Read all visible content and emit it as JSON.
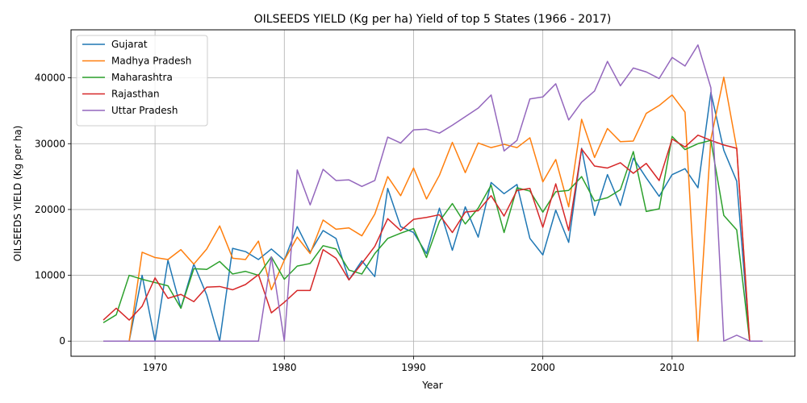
{
  "chart_data": {
    "type": "line",
    "title": "OILSEEDS YIELD (Kg per ha) Yield of top 5 States (1966 - 2017)",
    "xlabel": "Year",
    "ylabel": "OILSEEDS YIELD (Kg per ha)",
    "xlim": [
      1963.5,
      2019.5
    ],
    "ylim": [
      -2300,
      47300
    ],
    "xticks": [
      1970,
      1980,
      1990,
      2000,
      2010
    ],
    "yticks": [
      0,
      10000,
      20000,
      30000,
      40000
    ],
    "grid": true,
    "legend_position": "top-left",
    "x": [
      1966,
      1967,
      1968,
      1969,
      1970,
      1971,
      1972,
      1973,
      1974,
      1975,
      1976,
      1977,
      1978,
      1979,
      1980,
      1981,
      1982,
      1983,
      1984,
      1985,
      1986,
      1987,
      1988,
      1989,
      1990,
      1991,
      1992,
      1993,
      1994,
      1995,
      1996,
      1997,
      1998,
      1999,
      2000,
      2001,
      2002,
      2003,
      2004,
      2005,
      2006,
      2007,
      2008,
      2009,
      2010,
      2011,
      2012,
      2013,
      2014,
      2015,
      2016,
      2017
    ],
    "series": [
      {
        "name": "Gujarat",
        "color": "#1f77b4",
        "values": [
          0,
          0,
          0,
          10000,
          0,
          12300,
          5000,
          11700,
          7000,
          0,
          14100,
          13600,
          12400,
          14000,
          12300,
          17400,
          13500,
          16800,
          15600,
          9300,
          12200,
          9800,
          23200,
          17400,
          16500,
          13300,
          20200,
          13800,
          20400,
          15800,
          24100,
          22400,
          23800,
          15600,
          13100,
          19900,
          15000,
          29300,
          19100,
          25300,
          20600,
          27800,
          24800,
          22000,
          25300,
          26200,
          23300,
          37800,
          29000,
          24300,
          0,
          0
        ]
      },
      {
        "name": "Madhya Pradesh",
        "color": "#ff7f0e",
        "values": [
          0,
          0,
          0,
          13500,
          12700,
          12400,
          13900,
          11700,
          14000,
          17500,
          12600,
          12400,
          15200,
          7800,
          12300,
          15800,
          13300,
          18400,
          17000,
          17200,
          16000,
          19300,
          25000,
          22100,
          26300,
          21600,
          25200,
          30200,
          25600,
          30100,
          29400,
          29900,
          29400,
          30900,
          24200,
          27600,
          20400,
          33700,
          27900,
          32300,
          30300,
          30400,
          34600,
          35800,
          37400,
          34800,
          0,
          30700,
          40100,
          29300,
          0,
          0
        ]
      },
      {
        "name": "Maharashtra",
        "color": "#2ca02c",
        "values": [
          2800,
          4000,
          10000,
          9400,
          8900,
          8400,
          5000,
          11000,
          10900,
          12100,
          10200,
          10600,
          10000,
          12800,
          9400,
          11400,
          11800,
          14500,
          14000,
          10800,
          10200,
          13300,
          15600,
          16400,
          17100,
          12700,
          18200,
          20900,
          17800,
          20200,
          23700,
          16500,
          23300,
          22800,
          19600,
          22700,
          22900,
          25000,
          21300,
          21800,
          23000,
          28800,
          19700,
          20100,
          31100,
          29100,
          30000,
          30500,
          19100,
          16900,
          0,
          0
        ]
      },
      {
        "name": "Rajasthan",
        "color": "#d62728",
        "values": [
          3200,
          5000,
          3200,
          5300,
          9600,
          6500,
          7100,
          6000,
          8200,
          8300,
          7800,
          8600,
          10100,
          4300,
          5900,
          7700,
          7700,
          13900,
          12600,
          9300,
          11800,
          14400,
          18600,
          16800,
          18500,
          18800,
          19200,
          16500,
          19600,
          19800,
          22100,
          19000,
          22900,
          23200,
          17300,
          23900,
          16800,
          29200,
          26600,
          26300,
          27100,
          25500,
          27000,
          24400,
          30700,
          29500,
          31300,
          30500,
          29800,
          29300,
          0,
          0
        ]
      },
      {
        "name": "Uttar Pradesh",
        "color": "#9467bd",
        "values": [
          0,
          0,
          0,
          0,
          0,
          0,
          0,
          0,
          0,
          0,
          0,
          0,
          0,
          12800,
          0,
          26000,
          20700,
          26100,
          24400,
          24500,
          23500,
          24400,
          31000,
          30100,
          32100,
          32200,
          31600,
          32800,
          34100,
          35400,
          37400,
          28900,
          30500,
          36800,
          37100,
          39100,
          33600,
          36300,
          38000,
          42500,
          38800,
          41500,
          40900,
          39900,
          43100,
          41800,
          45000,
          38500,
          0,
          900,
          0,
          0
        ]
      }
    ]
  }
}
